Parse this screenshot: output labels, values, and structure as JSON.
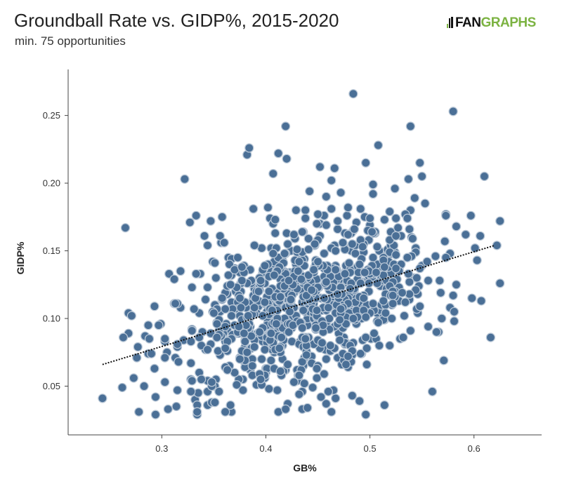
{
  "header": {
    "title": "Groundball Rate vs. GIDP%, 2015-2020",
    "subtitle": "min. 75 opportunities"
  },
  "logo": {
    "prefix": "FAN",
    "suffix": "GRAPHS",
    "color_primary": "#111111",
    "color_accent": "#7cb342"
  },
  "chart_data": {
    "type": "scatter",
    "xlabel": "GB%",
    "ylabel": "GIDP%",
    "xlim": [
      0.21,
      0.665
    ],
    "ylim": [
      0.014,
      0.284
    ],
    "x_ticks": [
      "0.3",
      "0.4",
      "0.5",
      "0.6"
    ],
    "y_ticks": [
      "0.05",
      "0.10",
      "0.15",
      "0.20",
      "0.25"
    ],
    "point_color": "#4a6f96",
    "point_edge_color": "#b9c7d6",
    "trendline": {
      "x": [
        0.243,
        0.62
      ],
      "y": [
        0.066,
        0.154
      ],
      "style": "dotted",
      "color": "#111111"
    },
    "points": {
      "x": [],
      "y": []
    }
  }
}
